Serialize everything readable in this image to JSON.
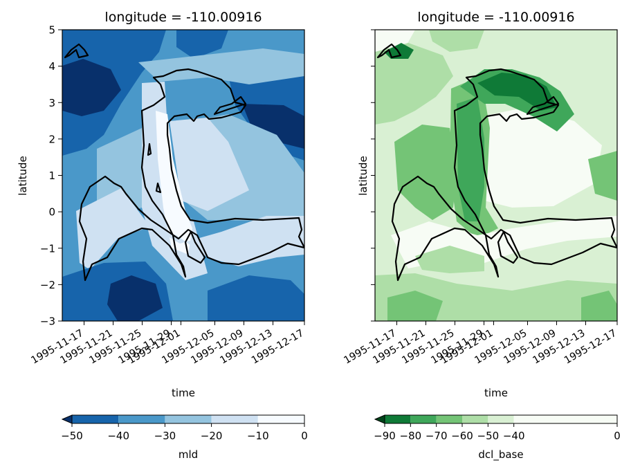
{
  "chart_data": [
    {
      "type": "filled-contour",
      "title": "longitude = -110.00916",
      "xlabel": "time",
      "ylabel": "latitude",
      "xticks": [
        "1995-11-17",
        "1995-11-21",
        "1995-11-25",
        "1995-11-29",
        "1995-12-01",
        "1995-12-05",
        "1995-12-09",
        "1995-12-13",
        "1995-12-17"
      ],
      "yticks": [
        "5",
        "4",
        "3",
        "2",
        "1",
        "0",
        "−1",
        "−2",
        "−3"
      ],
      "ylim": [
        -3,
        5
      ],
      "colorbar": {
        "label": "mld",
        "ticks": [
          "−50",
          "−40",
          "−30",
          "−20",
          "−10",
          "0"
        ],
        "levels": [
          -50,
          -40,
          -30,
          -20,
          -10,
          0
        ],
        "extend": "min",
        "colormap": "Blues_r",
        "colors": [
          "#08306b",
          "#1764ab",
          "#4a98c9",
          "#94c4df",
          "#cfe1f2",
          "#f7fbff"
        ]
      }
    },
    {
      "type": "filled-contour",
      "title": "longitude = -110.00916",
      "xlabel": "time",
      "ylabel": "latitude",
      "xticks": [
        "1995-11-17",
        "1995-11-21",
        "1995-11-25",
        "1995-11-29",
        "1995-12-01",
        "1995-12-05",
        "1995-12-09",
        "1995-12-13",
        "1995-12-17"
      ],
      "ylim": [
        -3,
        5
      ],
      "colorbar": {
        "label": "dcl_base",
        "ticks": [
          "−90",
          "−80",
          "−70",
          "−60",
          "−50",
          "−40",
          "0"
        ],
        "levels": [
          -90,
          -80,
          -70,
          -60,
          -50,
          -40,
          0
        ],
        "extend": "min",
        "colormap": "Greens_r",
        "colors": [
          "#00441b",
          "#0f7a37",
          "#3fa75a",
          "#74c476",
          "#aedea7",
          "#d9f0d3",
          "#f7fcf5"
        ]
      }
    }
  ]
}
